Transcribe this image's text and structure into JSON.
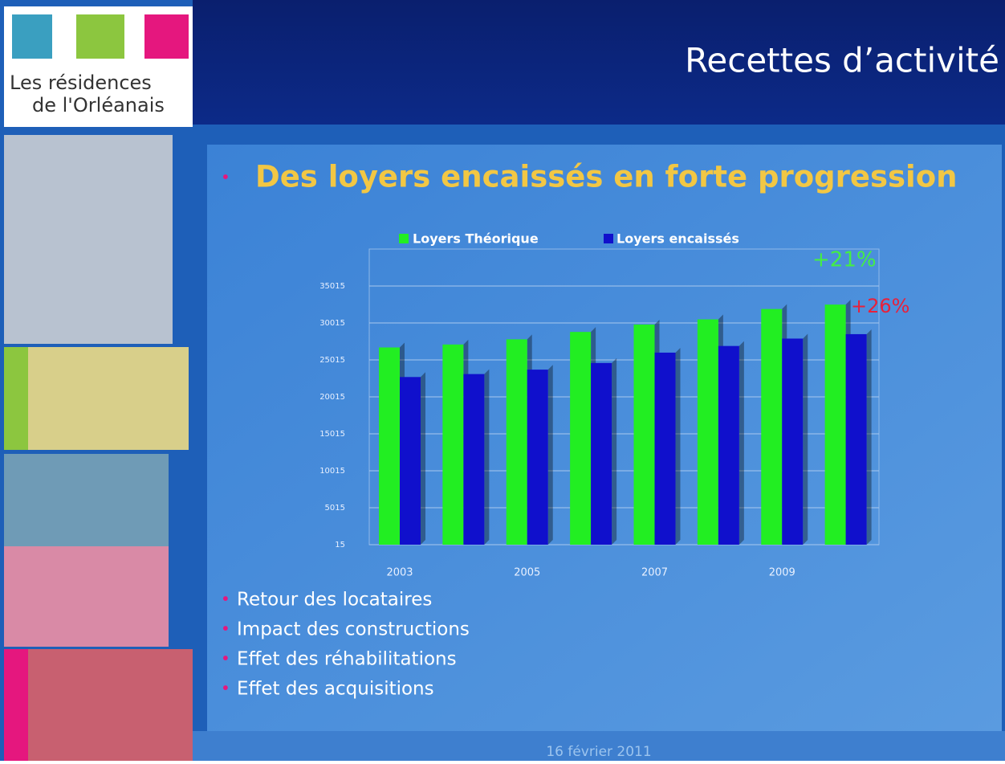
{
  "header": {
    "title": "Recettes d’activité",
    "logo": [
      "Les résidences",
      "de l'Orléanais"
    ]
  },
  "heading": "Des loyers encaissés en forte progression",
  "chart_data": {
    "type": "bar",
    "categories": [
      "2003",
      null,
      "2005",
      null,
      "2007",
      null,
      "2009",
      null
    ],
    "series": [
      {
        "name": "Loyers Théorique",
        "color": "#22ee22",
        "values": [
          26700,
          27100,
          27800,
          28800,
          29800,
          30500,
          31900,
          32500
        ]
      },
      {
        "name": "Loyers encaissés",
        "color": "#1010cc",
        "values": [
          22700,
          23100,
          23700,
          24600,
          26000,
          26900,
          27900,
          28500
        ]
      }
    ],
    "ylim": [
      15,
      40015
    ],
    "yticks": [
      15,
      5015,
      10015,
      15015,
      20015,
      25015,
      30015,
      35015
    ],
    "grid": true,
    "annotations": [
      "+21%",
      "+26%"
    ]
  },
  "bullets": [
    "Retour des locataires",
    "Impact des constructions",
    "Effet des réhabilitations",
    "Effet des acquisitions"
  ],
  "footer": "16 février 2011"
}
